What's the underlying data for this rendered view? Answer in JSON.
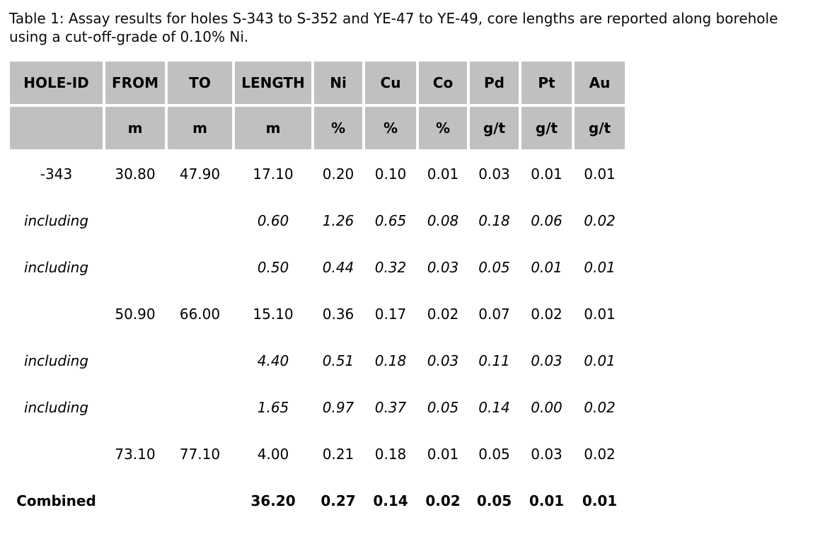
{
  "caption": {
    "line1": "Table 1: Assay results for holes S-343 to S-352 and YE-47 to YE-49, core lengths are reported along borehole",
    "line2": "using a cut-off-grade of 0.10% Ni."
  },
  "colors": {
    "header_bg": "#c0c0c0",
    "cell_bg": "#ffffff",
    "text": "#000000"
  },
  "table": {
    "columns": [
      {
        "key": "hole-id",
        "label": "HOLE-ID",
        "unit": ""
      },
      {
        "key": "from",
        "label": "FROM",
        "unit": "m"
      },
      {
        "key": "to",
        "label": "TO",
        "unit": "m"
      },
      {
        "key": "length",
        "label": "LENGTH",
        "unit": "m"
      },
      {
        "key": "ni",
        "label": "Ni",
        "unit": "%"
      },
      {
        "key": "cu",
        "label": "Cu",
        "unit": "%"
      },
      {
        "key": "co",
        "label": "Co",
        "unit": "%"
      },
      {
        "key": "pd",
        "label": "Pd",
        "unit": "g/t"
      },
      {
        "key": "pt",
        "label": "Pt",
        "unit": "g/t"
      },
      {
        "key": "au",
        "label": "Au",
        "unit": "g/t"
      }
    ],
    "rows": [
      {
        "style": "normal",
        "cells": [
          "-343",
          "30.80",
          "47.90",
          "17.10",
          "0.20",
          "0.10",
          "0.01",
          "0.03",
          "0.01",
          "0.01"
        ]
      },
      {
        "style": "italic",
        "cells": [
          "including",
          "",
          "",
          "0.60",
          "1.26",
          "0.65",
          "0.08",
          "0.18",
          "0.06",
          "0.02"
        ]
      },
      {
        "style": "italic",
        "cells": [
          "including",
          "",
          "",
          "0.50",
          "0.44",
          "0.32",
          "0.03",
          "0.05",
          "0.01",
          "0.01"
        ]
      },
      {
        "style": "normal",
        "cells": [
          "",
          "50.90",
          "66.00",
          "15.10",
          "0.36",
          "0.17",
          "0.02",
          "0.07",
          "0.02",
          "0.01"
        ]
      },
      {
        "style": "italic",
        "cells": [
          "including",
          "",
          "",
          "4.40",
          "0.51",
          "0.18",
          "0.03",
          "0.11",
          "0.03",
          "0.01"
        ]
      },
      {
        "style": "italic",
        "cells": [
          "including",
          "",
          "",
          "1.65",
          "0.97",
          "0.37",
          "0.05",
          "0.14",
          "0.00",
          "0.02"
        ]
      },
      {
        "style": "normal",
        "cells": [
          "",
          "73.10",
          "77.10",
          "4.00",
          "0.21",
          "0.18",
          "0.01",
          "0.05",
          "0.03",
          "0.02"
        ]
      },
      {
        "style": "bold",
        "cells": [
          "Combined",
          "",
          "",
          "36.20",
          "0.27",
          "0.14",
          "0.02",
          "0.05",
          "0.01",
          "0.01"
        ]
      }
    ]
  }
}
